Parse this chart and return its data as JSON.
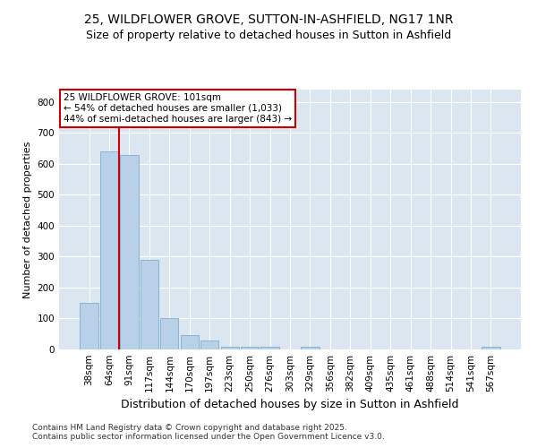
{
  "title1": "25, WILDFLOWER GROVE, SUTTON-IN-ASHFIELD, NG17 1NR",
  "title2": "Size of property relative to detached houses in Sutton in Ashfield",
  "xlabel": "Distribution of detached houses by size in Sutton in Ashfield",
  "ylabel": "Number of detached properties",
  "categories": [
    "38sqm",
    "64sqm",
    "91sqm",
    "117sqm",
    "144sqm",
    "170sqm",
    "197sqm",
    "223sqm",
    "250sqm",
    "276sqm",
    "303sqm",
    "329sqm",
    "356sqm",
    "382sqm",
    "409sqm",
    "435sqm",
    "461sqm",
    "488sqm",
    "514sqm",
    "541sqm",
    "567sqm"
  ],
  "values": [
    150,
    640,
    630,
    290,
    100,
    45,
    30,
    10,
    10,
    10,
    0,
    10,
    0,
    0,
    0,
    0,
    0,
    0,
    0,
    0,
    10
  ],
  "bar_color": "#b8d0e8",
  "bar_edge_color": "#7aafd4",
  "vline_color": "#cc0000",
  "vline_x_index": 2,
  "annotation_line1": "25 WILDFLOWER GROVE: 101sqm",
  "annotation_line2": "← 54% of detached houses are smaller (1,033)",
  "annotation_line3": "44% of semi-detached houses are larger (843) →",
  "annotation_box_color": "#cc0000",
  "ylim": [
    0,
    840
  ],
  "yticks": [
    0,
    100,
    200,
    300,
    400,
    500,
    600,
    700,
    800
  ],
  "bg_color": "#dce6f0",
  "footer": "Contains HM Land Registry data © Crown copyright and database right 2025.\nContains public sector information licensed under the Open Government Licence v3.0.",
  "title_fontsize": 10,
  "subtitle_fontsize": 9,
  "ylabel_fontsize": 8,
  "xlabel_fontsize": 9,
  "tick_fontsize": 7.5,
  "footer_fontsize": 6.5
}
